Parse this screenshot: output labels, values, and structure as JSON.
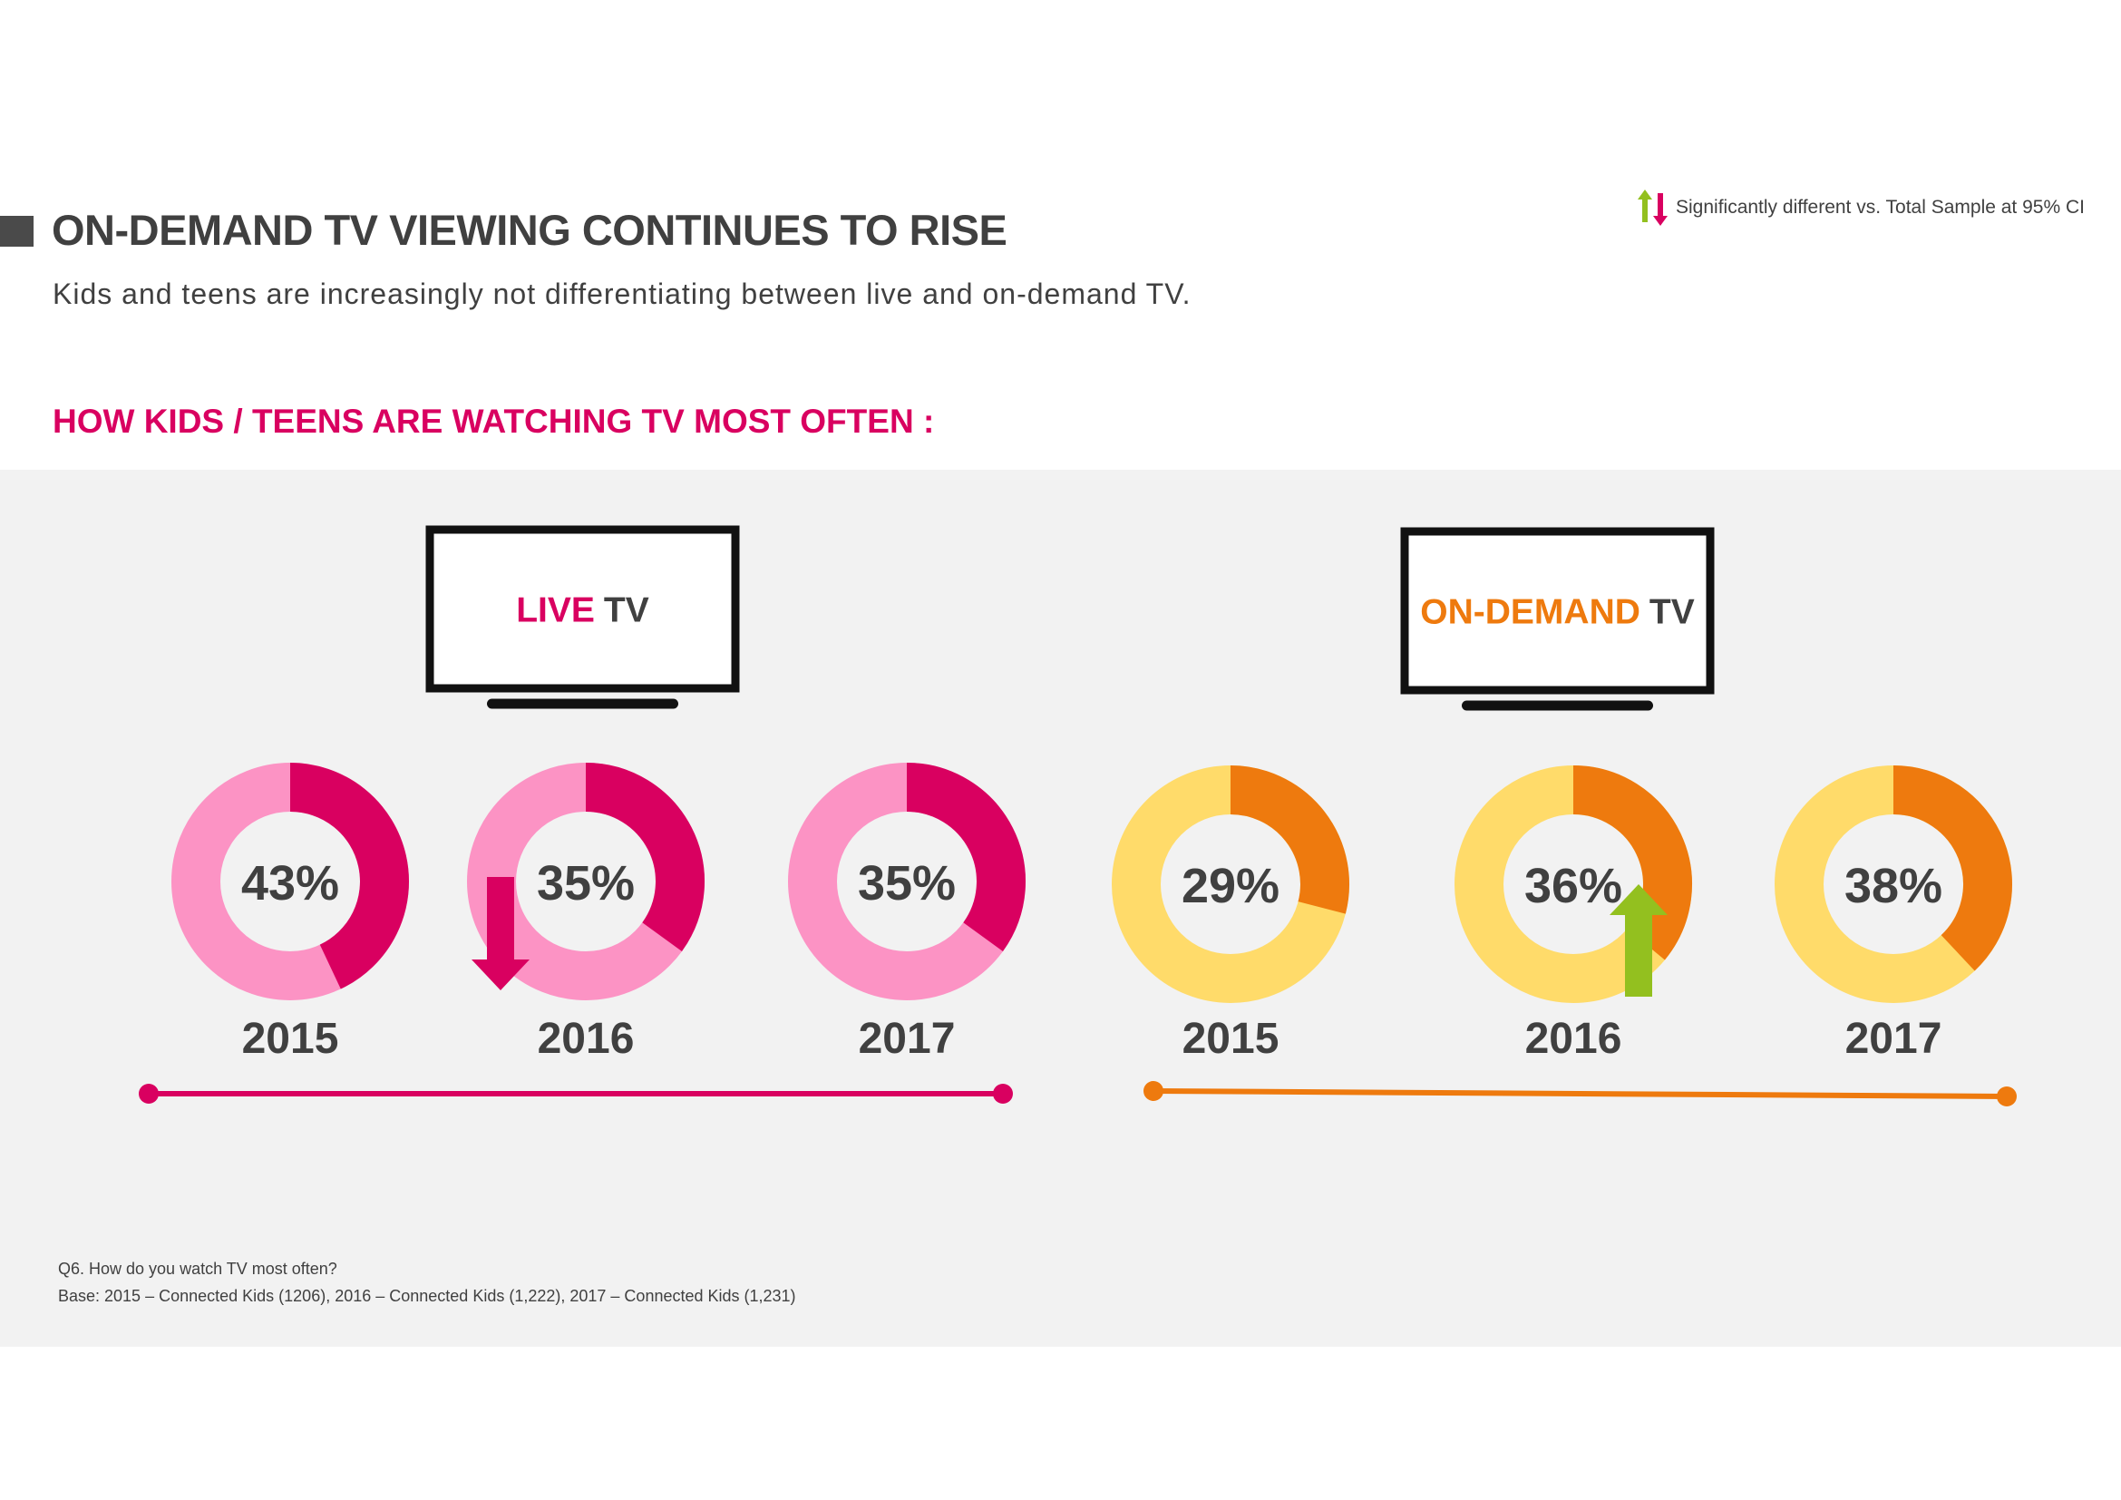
{
  "header": {
    "title": "ON-DEMAND TV VIEWING CONTINUES TO RISE",
    "subtitle": "Kids and teens are increasingly not differentiating between live and on-demand TV.",
    "section_heading": "HOW KIDS / TEENS ARE WATCHING TV MOST OFTEN :"
  },
  "legend": {
    "text": "Significantly different vs. Total Sample at 95% CI",
    "up_color": "#93c01f",
    "down_color": "#d90060"
  },
  "footnotes": {
    "question": "Q6. How do you watch TV most often?",
    "base": "Base: 2015 – Connected Kids (1206), 2016 – Connected Kids (1,222), 2017 – Connected Kids (1,231)"
  },
  "chart_data": [
    {
      "type": "pie",
      "group_label_accent": "LIVE",
      "group_label_rest": "TV",
      "accent_color": "#d90060",
      "base_color": "#fc93c4",
      "categories": [
        "2015",
        "2016",
        "2017"
      ],
      "values": [
        43,
        35,
        35
      ],
      "value_labels": [
        "43%",
        "35%",
        "35%"
      ],
      "significance": [
        "",
        "down",
        ""
      ]
    },
    {
      "type": "pie",
      "group_label_accent": "ON-DEMAND",
      "group_label_rest": "TV",
      "accent_color": "#ee7a0e",
      "base_color": "#ffdb6a",
      "categories": [
        "2015",
        "2016",
        "2017"
      ],
      "values": [
        29,
        36,
        38
      ],
      "value_labels": [
        "29%",
        "36%",
        "38%"
      ],
      "significance": [
        "",
        "up",
        ""
      ]
    }
  ]
}
